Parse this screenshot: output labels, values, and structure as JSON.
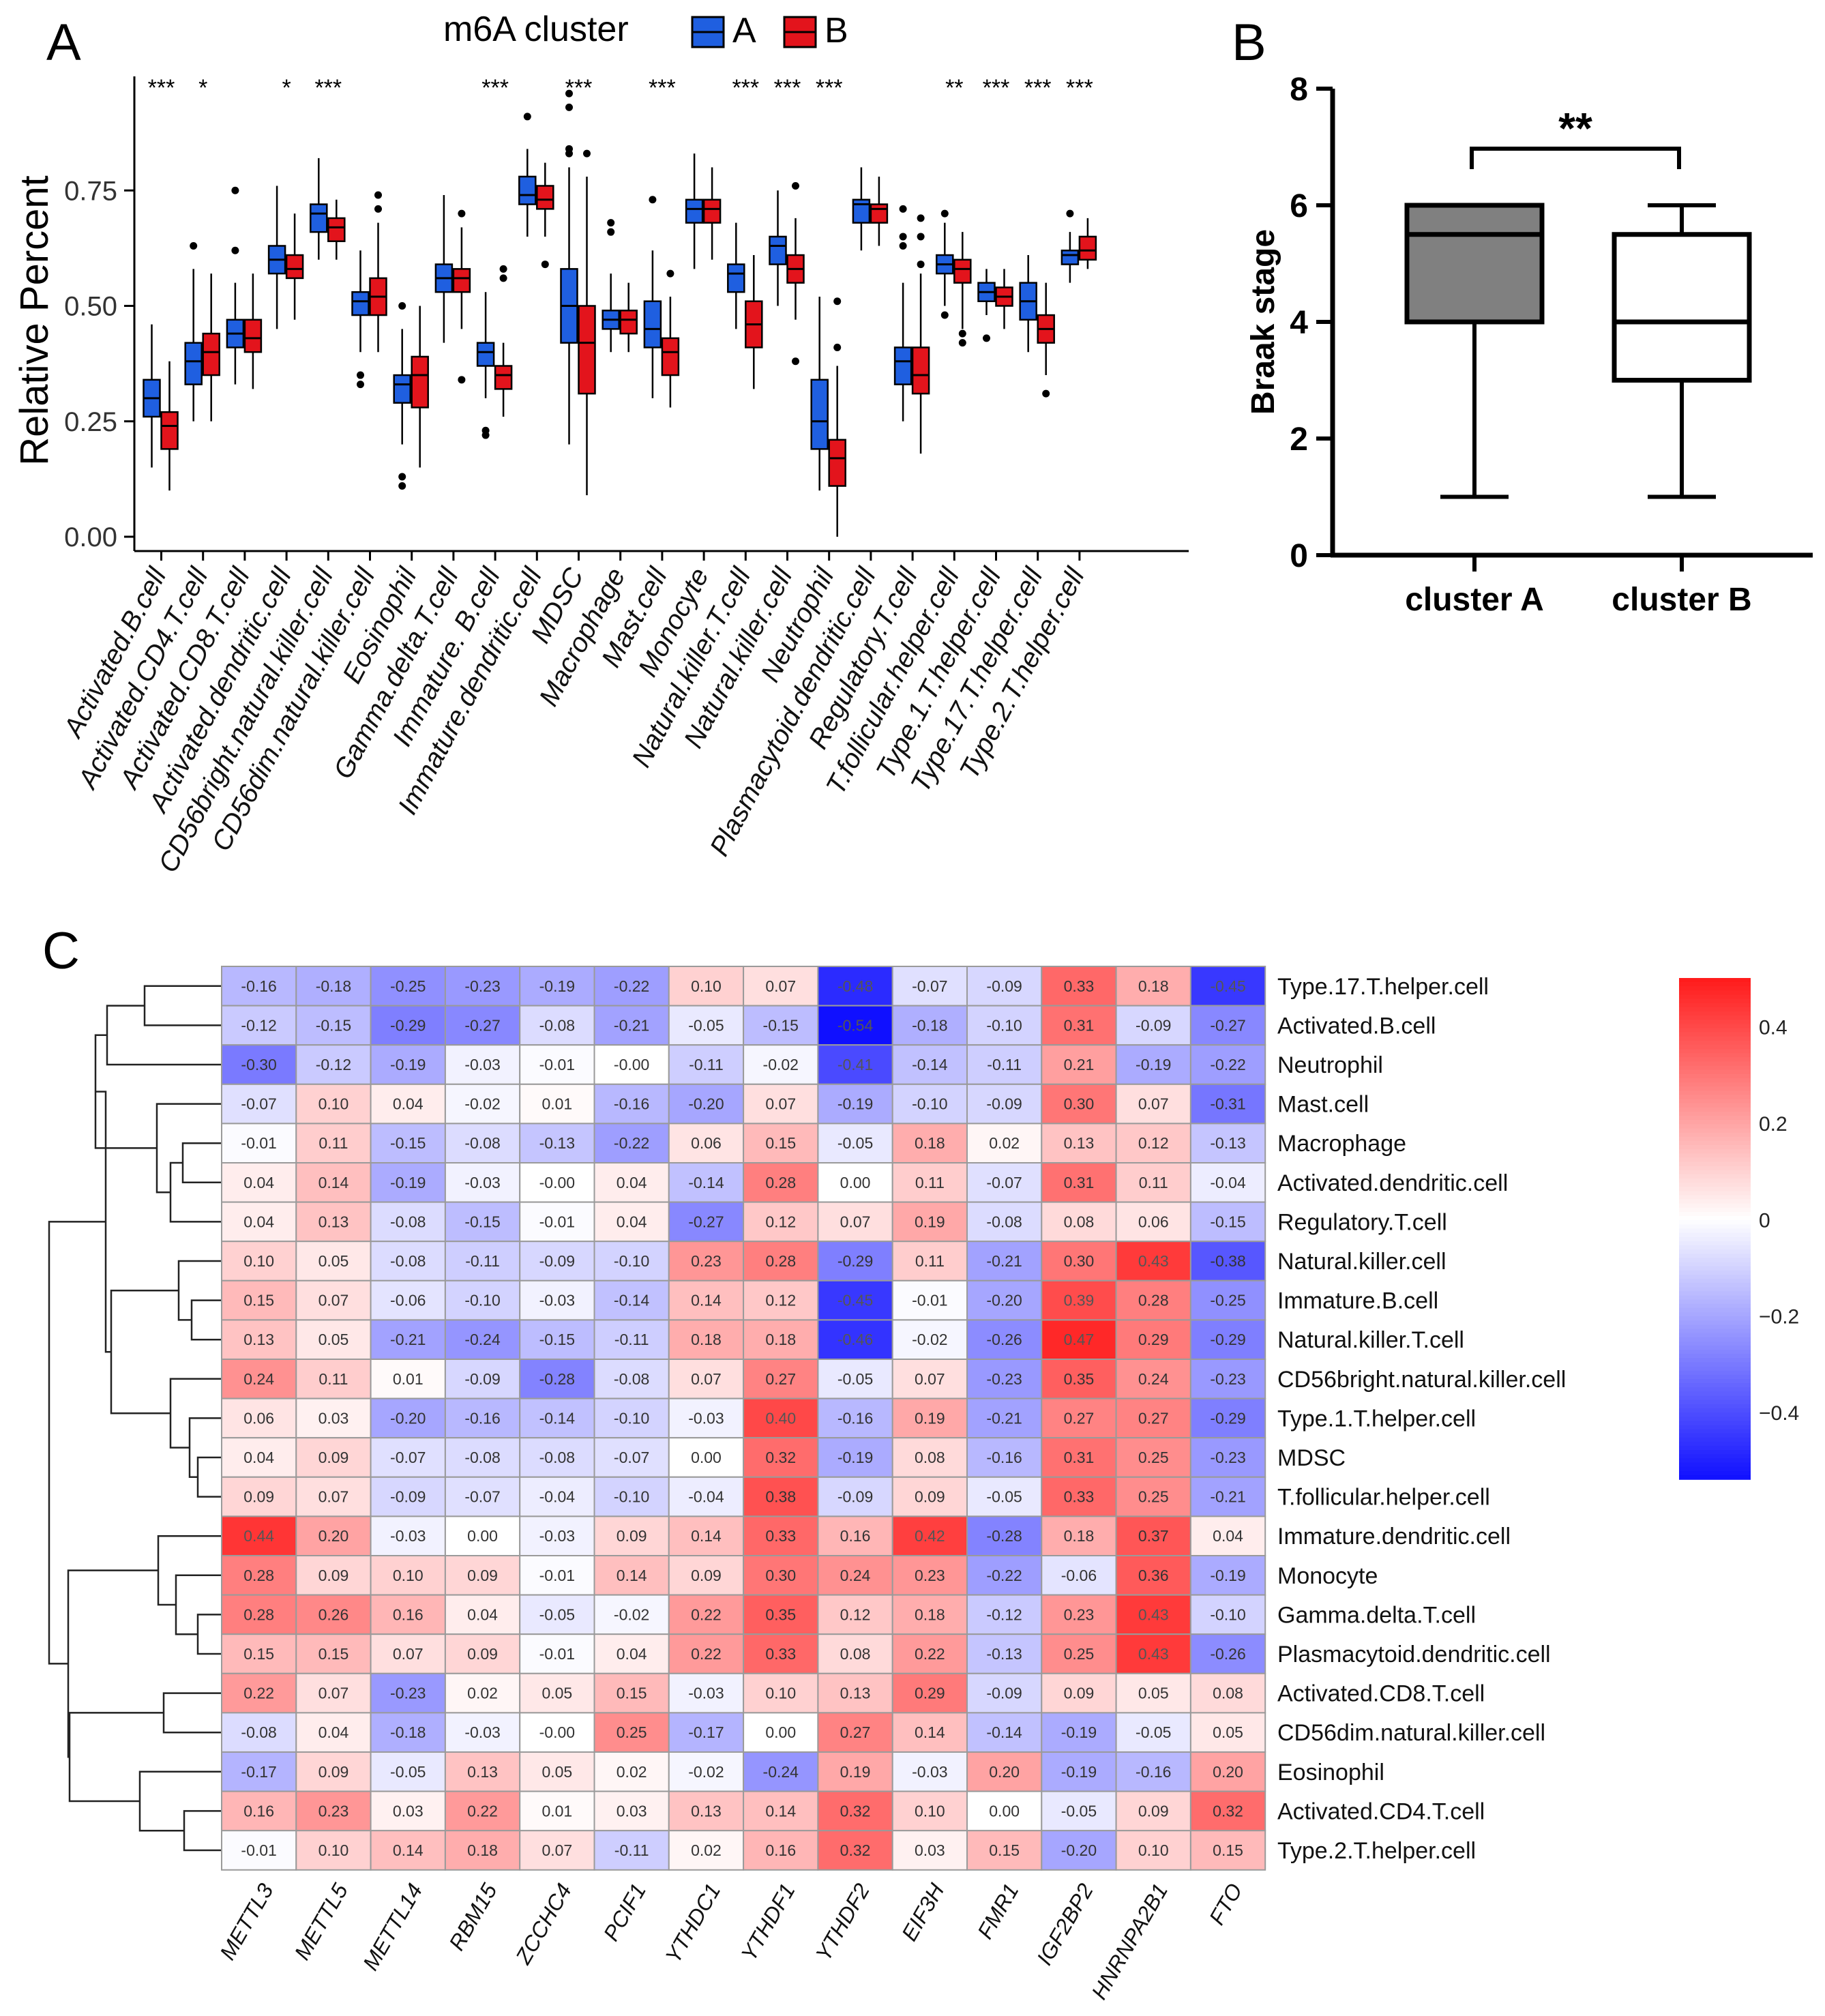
{
  "colors": {
    "clusterA": "#1f5fe0",
    "clusterB": "#e3141c",
    "grayBox": "#808080",
    "heatLow": "#1010ff",
    "heatMid": "#ffffff",
    "heatHigh": "#ff1a1a"
  },
  "chart_data": [
    {
      "id": "A",
      "type": "box",
      "panel_label": "A",
      "legend_title": "m6A cluster",
      "legend": [
        "A",
        "B"
      ],
      "ylabel": "Relative Percent",
      "ylim": [
        0,
        1.0
      ],
      "yticks": [
        "0.00",
        "0.25",
        "0.50",
        "0.75"
      ],
      "categories": [
        "Activated.B.cell",
        "Activated.CD4.T.cell",
        "Activated.CD8.T.cell",
        "Activated.dendritic.cell",
        "CD56bright.natural.killer.cell",
        "CD56dim.natural.killer.cell",
        "Eosinophil",
        "Gamma.delta.T.cell",
        "Immature. B.cell",
        "Immature.dendritic.cell",
        "MDSC",
        "Macrophage",
        "Mast.cell",
        "Monocyte",
        "Natural.killer.T.cell",
        "Natural.killer.cell",
        "Neutrophil",
        "Plasmacytoid.dendritic.cell",
        "Regulatory.T.cell",
        "T.follicular.helper.cell",
        "Type.1.T.helper.cell",
        "Type.17.T.helper.cell",
        "Type.2.T.helper.cell"
      ],
      "significance": [
        "***",
        "*",
        "",
        "*",
        "***",
        "",
        "",
        "",
        "***",
        "",
        "***",
        "",
        "***",
        "",
        "***",
        "***",
        "***",
        "",
        "",
        "**",
        "***",
        "***",
        "***"
      ],
      "series": [
        {
          "name": "A",
          "boxes": [
            [
              0.15,
              0.26,
              0.3,
              0.34,
              0.46
            ],
            [
              0.25,
              0.33,
              0.38,
              0.42,
              0.58
            ],
            [
              0.33,
              0.41,
              0.44,
              0.47,
              0.55
            ],
            [
              0.45,
              0.57,
              0.6,
              0.63,
              0.76
            ],
            [
              0.6,
              0.66,
              0.7,
              0.72,
              0.82
            ],
            [
              0.4,
              0.48,
              0.51,
              0.53,
              0.62
            ],
            [
              0.2,
              0.29,
              0.33,
              0.35,
              0.45
            ],
            [
              0.42,
              0.53,
              0.56,
              0.59,
              0.74
            ],
            [
              0.3,
              0.37,
              0.4,
              0.42,
              0.53
            ],
            [
              0.65,
              0.72,
              0.74,
              0.78,
              0.84
            ],
            [
              0.2,
              0.42,
              0.5,
              0.58,
              0.8
            ],
            [
              0.4,
              0.45,
              0.47,
              0.49,
              0.57
            ],
            [
              0.3,
              0.41,
              0.45,
              0.51,
              0.62
            ],
            [
              0.58,
              0.68,
              0.71,
              0.73,
              0.83
            ],
            [
              0.45,
              0.53,
              0.57,
              0.59,
              0.68
            ],
            [
              0.5,
              0.59,
              0.63,
              0.65,
              0.75
            ],
            [
              0.1,
              0.19,
              0.25,
              0.34,
              0.52
            ],
            [
              0.62,
              0.68,
              0.72,
              0.73,
              0.8
            ],
            [
              0.25,
              0.33,
              0.38,
              0.41,
              0.55
            ],
            [
              0.5,
              0.57,
              0.59,
              0.61,
              0.68
            ],
            [
              0.48,
              0.51,
              0.53,
              0.55,
              0.58
            ],
            [
              0.4,
              0.47,
              0.51,
              0.55,
              0.61
            ],
            [
              0.55,
              0.59,
              0.61,
              0.62,
              0.66
            ]
          ]
        },
        {
          "name": "B",
          "boxes": [
            [
              0.1,
              0.19,
              0.24,
              0.27,
              0.38
            ],
            [
              0.25,
              0.35,
              0.4,
              0.44,
              0.57
            ],
            [
              0.32,
              0.4,
              0.43,
              0.47,
              0.57
            ],
            [
              0.47,
              0.56,
              0.58,
              0.61,
              0.7
            ],
            [
              0.6,
              0.64,
              0.67,
              0.69,
              0.73
            ],
            [
              0.4,
              0.48,
              0.52,
              0.56,
              0.68
            ],
            [
              0.15,
              0.28,
              0.35,
              0.39,
              0.5
            ],
            [
              0.45,
              0.53,
              0.56,
              0.58,
              0.67
            ],
            [
              0.26,
              0.32,
              0.35,
              0.37,
              0.42
            ],
            [
              0.65,
              0.71,
              0.73,
              0.76,
              0.81
            ],
            [
              0.09,
              0.31,
              0.42,
              0.5,
              0.78
            ],
            [
              0.4,
              0.44,
              0.47,
              0.49,
              0.55
            ],
            [
              0.28,
              0.35,
              0.4,
              0.43,
              0.52
            ],
            [
              0.6,
              0.68,
              0.71,
              0.73,
              0.8
            ],
            [
              0.32,
              0.41,
              0.46,
              0.51,
              0.61
            ],
            [
              0.47,
              0.55,
              0.58,
              0.61,
              0.69
            ],
            [
              0.0,
              0.11,
              0.17,
              0.21,
              0.37
            ],
            [
              0.63,
              0.68,
              0.71,
              0.72,
              0.78
            ],
            [
              0.18,
              0.31,
              0.35,
              0.41,
              0.57
            ],
            [
              0.45,
              0.55,
              0.58,
              0.6,
              0.66
            ],
            [
              0.45,
              0.5,
              0.52,
              0.54,
              0.58
            ],
            [
              0.35,
              0.42,
              0.45,
              0.48,
              0.55
            ],
            [
              0.58,
              0.6,
              0.62,
              0.65,
              0.69
            ]
          ]
        }
      ],
      "outliers": [
        {
          "cat": 1,
          "series": "A",
          "v": 0.63
        },
        {
          "cat": 2,
          "series": "A",
          "v": 0.75
        },
        {
          "cat": 2,
          "series": "A",
          "v": 0.62
        },
        {
          "cat": 5,
          "series": "A",
          "v": 0.35
        },
        {
          "cat": 5,
          "series": "A",
          "v": 0.33
        },
        {
          "cat": 5,
          "series": "B",
          "v": 0.74
        },
        {
          "cat": 5,
          "series": "B",
          "v": 0.71
        },
        {
          "cat": 6,
          "series": "A",
          "v": 0.5
        },
        {
          "cat": 6,
          "series": "A",
          "v": 0.13
        },
        {
          "cat": 6,
          "series": "A",
          "v": 0.11
        },
        {
          "cat": 7,
          "series": "B",
          "v": 0.7
        },
        {
          "cat": 7,
          "series": "B",
          "v": 0.34
        },
        {
          "cat": 8,
          "series": "A",
          "v": 0.23
        },
        {
          "cat": 8,
          "series": "A",
          "v": 0.22
        },
        {
          "cat": 8,
          "series": "B",
          "v": 0.58
        },
        {
          "cat": 8,
          "series": "B",
          "v": 0.56
        },
        {
          "cat": 9,
          "series": "A",
          "v": 0.91
        },
        {
          "cat": 9,
          "series": "B",
          "v": 0.59
        },
        {
          "cat": 10,
          "series": "A",
          "v": 0.96
        },
        {
          "cat": 10,
          "series": "A",
          "v": 0.93
        },
        {
          "cat": 10,
          "series": "A",
          "v": 0.84
        },
        {
          "cat": 10,
          "series": "A",
          "v": 0.83
        },
        {
          "cat": 10,
          "series": "B",
          "v": 0.83
        },
        {
          "cat": 11,
          "series": "A",
          "v": 0.68
        },
        {
          "cat": 11,
          "series": "A",
          "v": 0.66
        },
        {
          "cat": 12,
          "series": "A",
          "v": 0.73
        },
        {
          "cat": 12,
          "series": "B",
          "v": 0.57
        },
        {
          "cat": 15,
          "series": "B",
          "v": 0.76
        },
        {
          "cat": 15,
          "series": "B",
          "v": 0.38
        },
        {
          "cat": 16,
          "series": "B",
          "v": 0.51
        },
        {
          "cat": 16,
          "series": "B",
          "v": 0.41
        },
        {
          "cat": 18,
          "series": "A",
          "v": 0.71
        },
        {
          "cat": 18,
          "series": "A",
          "v": 0.65
        },
        {
          "cat": 18,
          "series": "A",
          "v": 0.63
        },
        {
          "cat": 18,
          "series": "B",
          "v": 0.69
        },
        {
          "cat": 18,
          "series": "B",
          "v": 0.65
        },
        {
          "cat": 18,
          "series": "B",
          "v": 0.59
        },
        {
          "cat": 19,
          "series": "A",
          "v": 0.7
        },
        {
          "cat": 19,
          "series": "A",
          "v": 0.48
        },
        {
          "cat": 19,
          "series": "B",
          "v": 0.44
        },
        {
          "cat": 19,
          "series": "B",
          "v": 0.42
        },
        {
          "cat": 20,
          "series": "A",
          "v": 0.43
        },
        {
          "cat": 21,
          "series": "B",
          "v": 0.31
        },
        {
          "cat": 22,
          "series": "A",
          "v": 0.7
        }
      ]
    },
    {
      "id": "B",
      "type": "box",
      "panel_label": "B",
      "ylabel": "Braak stage",
      "ylim": [
        0,
        8
      ],
      "yticks": [
        "0",
        "2",
        "4",
        "6",
        "8"
      ],
      "categories": [
        "cluster A",
        "cluster B"
      ],
      "boxes": [
        [
          1,
          4,
          5.5,
          6,
          6
        ],
        [
          1,
          3,
          4,
          5.5,
          6
        ]
      ],
      "significance": "**"
    },
    {
      "id": "C",
      "type": "heatmap",
      "panel_label": "C",
      "columns": [
        "METTL3",
        "METTL5",
        "METTL14",
        "RBM15",
        "ZCCHC4",
        "PCIF1",
        "YTHDC1",
        "YTHDF1",
        "YTHDF2",
        "EIF3H",
        "FMR1",
        "IGF2BP2",
        "HNRNPA2B1",
        "FTO"
      ],
      "rows": [
        "Type.17.T.helper.cell",
        "Activated.B.cell",
        "Neutrophil",
        "Mast.cell",
        "Macrophage",
        "Activated.dendritic.cell",
        "Regulatory.T.cell",
        "Natural.killer.cell",
        "Immature.B.cell",
        "Natural.killer.T.cell",
        "CD56bright.natural.killer.cell",
        "Type.1.T.helper.cell",
        "MDSC",
        "T.follicular.helper.cell",
        "Immature.dendritic.cell",
        "Monocyte",
        "Gamma.delta.T.cell",
        "Plasmacytoid.dendritic.cell",
        "Activated.CD8.T.cell",
        "CD56dim.natural.killer.cell",
        "Eosinophil",
        "Activated.CD4.T.cell",
        "Type.2.T.helper.cell"
      ],
      "values": [
        [
          "-0.16",
          "-0.18",
          "-0.25",
          "-0.23",
          "-0.19",
          "-0.22",
          "0.10",
          "0.07",
          "-0.48",
          "-0.07",
          "-0.09",
          "0.33",
          "0.18",
          "-0.45"
        ],
        [
          "-0.12",
          "-0.15",
          "-0.29",
          "-0.27",
          "-0.08",
          "-0.21",
          "-0.05",
          "-0.15",
          "-0.54",
          "-0.18",
          "-0.10",
          "0.31",
          "-0.09",
          "-0.27"
        ],
        [
          "-0.30",
          "-0.12",
          "-0.19",
          "-0.03",
          "-0.01",
          "-0.00",
          "-0.11",
          "-0.02",
          "-0.41",
          "-0.14",
          "-0.11",
          "0.21",
          "-0.19",
          "-0.22"
        ],
        [
          "-0.07",
          "0.10",
          "0.04",
          "-0.02",
          "0.01",
          "-0.16",
          "-0.20",
          "0.07",
          "-0.19",
          "-0.10",
          "-0.09",
          "0.30",
          "0.07",
          "-0.31"
        ],
        [
          "-0.01",
          "0.11",
          "-0.15",
          "-0.08",
          "-0.13",
          "-0.22",
          "0.06",
          "0.15",
          "-0.05",
          "0.18",
          "0.02",
          "0.13",
          "0.12",
          "-0.13"
        ],
        [
          "0.04",
          "0.14",
          "-0.19",
          "-0.03",
          "-0.00",
          "0.04",
          "-0.14",
          "0.28",
          "0.00",
          "0.11",
          "-0.07",
          "0.31",
          "0.11",
          "-0.04"
        ],
        [
          "0.04",
          "0.13",
          "-0.08",
          "-0.15",
          "-0.01",
          "0.04",
          "-0.27",
          "0.12",
          "0.07",
          "0.19",
          "-0.08",
          "0.08",
          "0.06",
          "-0.15"
        ],
        [
          "0.10",
          "0.05",
          "-0.08",
          "-0.11",
          "-0.09",
          "-0.10",
          "0.23",
          "0.28",
          "-0.29",
          "0.11",
          "-0.21",
          "0.30",
          "0.43",
          "-0.38"
        ],
        [
          "0.15",
          "0.07",
          "-0.06",
          "-0.10",
          "-0.03",
          "-0.14",
          "0.14",
          "0.12",
          "-0.45",
          "-0.01",
          "-0.20",
          "0.39",
          "0.28",
          "-0.25"
        ],
        [
          "0.13",
          "0.05",
          "-0.21",
          "-0.24",
          "-0.15",
          "-0.11",
          "0.18",
          "0.18",
          "-0.46",
          "-0.02",
          "-0.26",
          "0.47",
          "0.29",
          "-0.29"
        ],
        [
          "0.24",
          "0.11",
          "0.01",
          "-0.09",
          "-0.28",
          "-0.08",
          "0.07",
          "0.27",
          "-0.05",
          "0.07",
          "-0.23",
          "0.35",
          "0.24",
          "-0.23"
        ],
        [
          "0.06",
          "0.03",
          "-0.20",
          "-0.16",
          "-0.14",
          "-0.10",
          "-0.03",
          "0.40",
          "-0.16",
          "0.19",
          "-0.21",
          "0.27",
          "0.27",
          "-0.29"
        ],
        [
          "0.04",
          "0.09",
          "-0.07",
          "-0.08",
          "-0.08",
          "-0.07",
          "0.00",
          "0.32",
          "-0.19",
          "0.08",
          "-0.16",
          "0.31",
          "0.25",
          "-0.23"
        ],
        [
          "0.09",
          "0.07",
          "-0.09",
          "-0.07",
          "-0.04",
          "-0.10",
          "-0.04",
          "0.38",
          "-0.09",
          "0.09",
          "-0.05",
          "0.33",
          "0.25",
          "-0.21"
        ],
        [
          "0.44",
          "0.20",
          "-0.03",
          "0.00",
          "-0.03",
          "0.09",
          "0.14",
          "0.33",
          "0.16",
          "0.42",
          "-0.28",
          "0.18",
          "0.37",
          "0.04"
        ],
        [
          "0.28",
          "0.09",
          "0.10",
          "0.09",
          "-0.01",
          "0.14",
          "0.09",
          "0.30",
          "0.24",
          "0.23",
          "-0.22",
          "-0.06",
          "0.36",
          "-0.19"
        ],
        [
          "0.28",
          "0.26",
          "0.16",
          "0.04",
          "-0.05",
          "-0.02",
          "0.22",
          "0.35",
          "0.12",
          "0.18",
          "-0.12",
          "0.23",
          "0.43",
          "-0.10"
        ],
        [
          "0.15",
          "0.15",
          "0.07",
          "0.09",
          "-0.01",
          "0.04",
          "0.22",
          "0.33",
          "0.08",
          "0.22",
          "-0.13",
          "0.25",
          "0.43",
          "-0.26"
        ],
        [
          "0.22",
          "0.07",
          "-0.23",
          "0.02",
          "0.05",
          "0.15",
          "-0.03",
          "0.10",
          "0.13",
          "0.29",
          "-0.09",
          "0.09",
          "0.05",
          "0.08"
        ],
        [
          "-0.08",
          "0.04",
          "-0.18",
          "-0.03",
          "-0.00",
          "0.25",
          "-0.17",
          "0.00",
          "0.27",
          "0.14",
          "-0.14",
          "-0.19",
          "-0.05",
          "0.05"
        ],
        [
          "-0.17",
          "0.09",
          "-0.05",
          "0.13",
          "0.05",
          "0.02",
          "-0.02",
          "-0.24",
          "0.19",
          "-0.03",
          "0.20",
          "-0.19",
          "-0.16",
          "0.20"
        ],
        [
          "0.16",
          "0.23",
          "0.03",
          "0.22",
          "0.01",
          "0.03",
          "0.13",
          "0.14",
          "0.32",
          "0.10",
          "0.00",
          "-0.05",
          "0.09",
          "0.32"
        ],
        [
          "-0.01",
          "0.10",
          "0.14",
          "0.18",
          "0.07",
          "-0.11",
          "0.02",
          "0.16",
          "0.32",
          "0.03",
          "0.15",
          "-0.20",
          "0.10",
          "0.15"
        ]
      ],
      "colorbar": {
        "range": [
          -0.54,
          0.5
        ],
        "ticks": [
          0.4,
          0.2,
          0,
          -0.2,
          -0.4
        ],
        "tick_labels": [
          "0.4",
          "0.2",
          "0",
          "−0.2",
          "−0.4"
        ]
      }
    }
  ]
}
